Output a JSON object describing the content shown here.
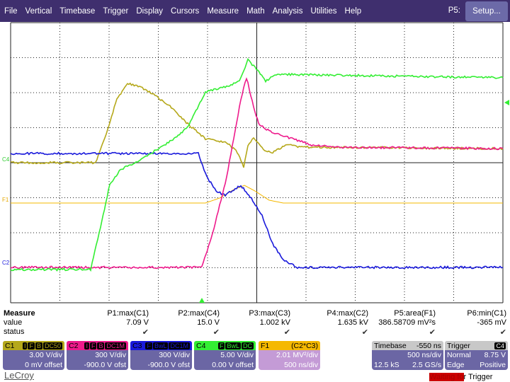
{
  "menu": {
    "items": [
      "File",
      "Vertical",
      "Timebase",
      "Trigger",
      "Display",
      "Cursors",
      "Measure",
      "Math",
      "Analysis",
      "Utilities",
      "Help"
    ],
    "context": "P5:",
    "setup": "Setup..."
  },
  "markers": {
    "c4": "C4",
    "f1": "F1",
    "c2": "C2"
  },
  "colors": {
    "C1": "#b5a81a",
    "C2": "#ee1b8c",
    "C3": "#1a1adb",
    "C4": "#33ee33",
    "F1": "#f5b800"
  },
  "measure": {
    "title": "Measure",
    "value_label": "value",
    "status_label": "status",
    "params": [
      {
        "name": "P1:max(C1)",
        "value": "7.09 V",
        "status": "✔"
      },
      {
        "name": "P2:max(C4)",
        "value": "15.0 V",
        "status": "✔"
      },
      {
        "name": "P3:max(C3)",
        "value": "1.002 kV",
        "status": "✔"
      },
      {
        "name": "P4:max(C2)",
        "value": "1.635 kV",
        "status": "✔"
      },
      {
        "name": "P5:area(F1)",
        "value": "386.58709 mV²s",
        "status": "✔"
      },
      {
        "name": "P6:min(C1)",
        "value": "-365 mV",
        "status": "✔"
      }
    ]
  },
  "channels": [
    {
      "name": "C1",
      "tags": [
        "I",
        "F",
        "B",
        "DC50"
      ],
      "scale": "3.00 V/div",
      "offset": "0 mV offset"
    },
    {
      "name": "C2",
      "tags": [
        "I",
        "F",
        "B",
        "DC1M"
      ],
      "scale": "300 V/div",
      "offset": "-900.0 V ofst"
    },
    {
      "name": "C3",
      "tags": [
        "F",
        "BwL",
        "DC1M"
      ],
      "scale": "300 V/div",
      "offset": "-900.0 V ofst"
    },
    {
      "name": "C4",
      "tags": [
        "F",
        "BwL",
        "DC"
      ],
      "scale": "5.00 V/div",
      "offset": "0.00 V offset"
    }
  ],
  "math": {
    "name": "F1",
    "expr": "(C2*C3)",
    "scale": "2.01 MV²/div",
    "time": "500 ns/div"
  },
  "timebase": {
    "label": "Timebase",
    "delay": "-550 ns",
    "scale": "500 ns/div",
    "samples": "12.5 kS",
    "rate": "2.5 GS/s"
  },
  "trigger": {
    "label": "Trigger",
    "source": "C4",
    "mode": "Normal",
    "level": "8.75 V",
    "type": "Edge",
    "slope": "Positive"
  },
  "brand": "LeCroy",
  "status": {
    "highlight": "Waiting fo",
    "rest": "r Trigger"
  }
}
